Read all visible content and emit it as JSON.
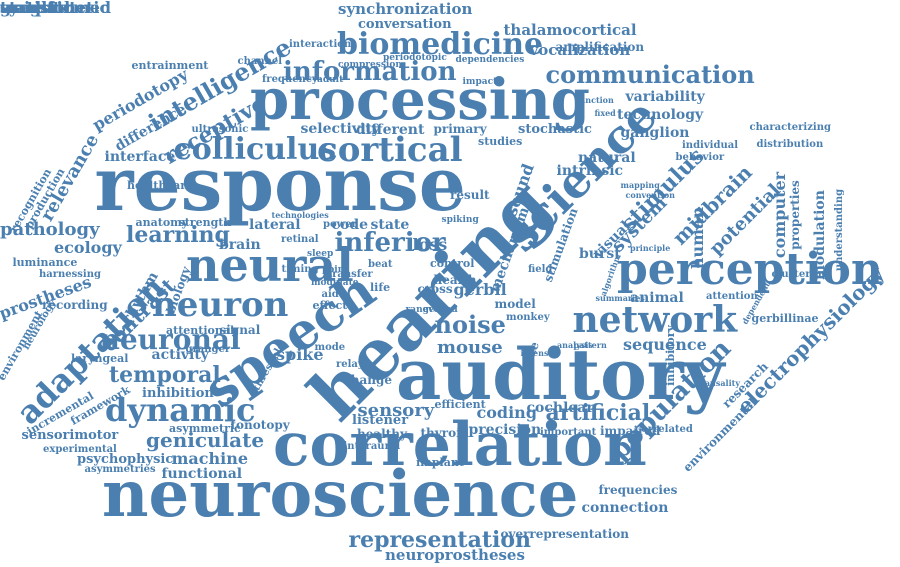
{
  "color": "#4a7fb0",
  "background": "#ffffff",
  "words": [
    "hearing",
    "auditory",
    "neuroscience",
    "correlation",
    "processing",
    "response",
    "perception",
    "science",
    "speech",
    "neural",
    "network",
    "cortical",
    "colliculus",
    "adaptation",
    "dynamic",
    "biomedicine",
    "neuron",
    "neuronal",
    "information",
    "communication",
    "population",
    "electrophysiology",
    "representation",
    "intelligence",
    "inferior",
    "temporal",
    "midbrain",
    "stimulus",
    "potential",
    "computer",
    "human",
    "visual",
    "system",
    "noise",
    "mouse",
    "learning",
    "contrast",
    "receptive",
    "synchronization",
    "conversation",
    "thalamocortical",
    "vocalization",
    "amplification",
    "variability",
    "technology",
    "ganglion",
    "natural",
    "sequence",
    "animal",
    "artificial",
    "sensory",
    "coding",
    "geniculate",
    "machine",
    "functional",
    "psychophysic",
    "connection",
    "frequencies",
    "neuroprostheses",
    "overrepresentation",
    "environmental",
    "research",
    "modulation",
    "properties",
    "understanding",
    "gerbil",
    "gerbillinae",
    "inhibitory",
    "pathology",
    "ecology",
    "luminance",
    "harnessing",
    "prostheses",
    "recording",
    "rhythm",
    "biology",
    "relevance",
    "periodotopy",
    "difference",
    "entrainment",
    "interface",
    "recognition",
    "production",
    "anatomy",
    "strength",
    "healthcare",
    "brain",
    "lateral",
    "state",
    "loss",
    "code",
    "attentional",
    "signal",
    "spike",
    "activity",
    "laryngeal",
    "granger",
    "inhibition",
    "framework",
    "incremental",
    "environment",
    "neurology",
    "sensorimotor",
    "experimental",
    "asymmetries",
    "asymmetric",
    "tonotopy",
    "characterizing",
    "distribution",
    "clustering",
    "attention",
    "listener",
    "healthy",
    "thyroid",
    "interaural",
    "precision",
    "important",
    "impaired",
    "correlated",
    "implant",
    "cochlear",
    "efficient",
    "primary",
    "selectivity",
    "different",
    "stochastic",
    "individual",
    "behavior",
    "studies",
    "intrinsic",
    "burst",
    "sound",
    "result",
    "cross",
    "model",
    "monkey",
    "effect",
    "change",
    "power",
    "timing",
    "retinal",
    "channel",
    "ultrasonic",
    "frequency",
    "interaction",
    "periodotopic",
    "dependencies",
    "compression",
    "mechanism",
    "stimulation",
    "field",
    "health",
    "control",
    "life",
    "aid",
    "beat",
    "rate",
    "mode",
    "range",
    "evoked",
    "threshold",
    "relay",
    "sleep",
    "point",
    "modulate",
    "transfer",
    "spiking",
    "adult",
    "impact",
    "function",
    "fixed",
    "mapping",
    "convention",
    "principle",
    "algorithm",
    "summaries",
    "dependent",
    "intensity",
    "analysis",
    "causality",
    "pattern",
    "technologies",
    "sympathetic",
    "weight",
    "transformed",
    "statistic",
    "gradient"
  ]
}
